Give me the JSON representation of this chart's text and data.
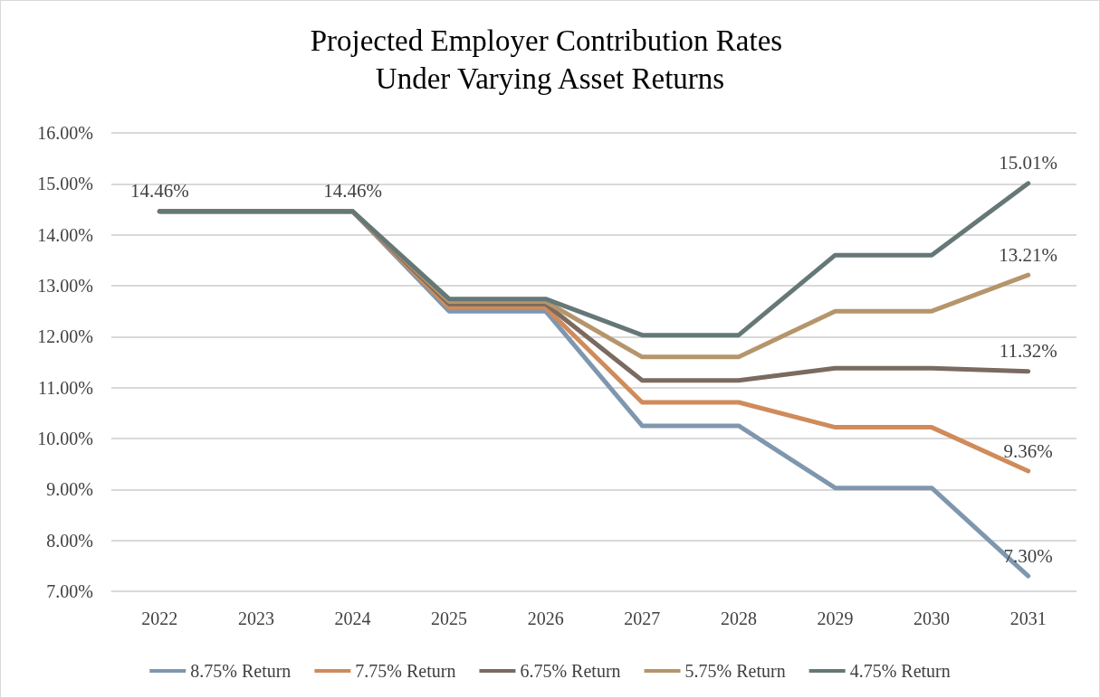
{
  "chart_data": {
    "type": "line",
    "title": "Projected Employer Contribution Rates Under Varying Asset Returns",
    "categories": [
      "2022",
      "2023",
      "2024",
      "2025",
      "2026",
      "2027",
      "2028",
      "2029",
      "2030",
      "2031"
    ],
    "series": [
      {
        "name": "8.75% Return",
        "color": "#7f97ae",
        "values": [
          14.46,
          14.46,
          14.46,
          12.5,
          12.5,
          10.25,
          10.25,
          9.03,
          9.03,
          7.3
        ],
        "value_labels": [
          null,
          null,
          null,
          null,
          null,
          null,
          null,
          null,
          null,
          "7.30%"
        ]
      },
      {
        "name": "7.75% Return",
        "color": "#d08b5b",
        "values": [
          14.46,
          14.46,
          14.46,
          12.57,
          12.57,
          10.71,
          10.71,
          10.22,
          10.22,
          9.36
        ],
        "value_labels": [
          null,
          null,
          null,
          null,
          null,
          null,
          null,
          null,
          null,
          "9.36%"
        ]
      },
      {
        "name": "6.75% Return",
        "color": "#7a6a60",
        "values": [
          14.46,
          14.46,
          14.46,
          12.64,
          12.64,
          11.14,
          11.14,
          11.38,
          11.38,
          11.32
        ],
        "value_labels": [
          null,
          null,
          null,
          null,
          null,
          null,
          null,
          null,
          null,
          "11.32%"
        ]
      },
      {
        "name": "5.75% Return",
        "color": "#b5956b",
        "values": [
          14.46,
          14.46,
          14.46,
          12.69,
          12.69,
          11.6,
          11.6,
          12.5,
          12.5,
          13.21
        ],
        "value_labels": [
          null,
          null,
          null,
          null,
          null,
          null,
          null,
          null,
          null,
          "13.21%"
        ]
      },
      {
        "name": "4.75% Return",
        "color": "#657877",
        "values": [
          14.46,
          14.46,
          14.46,
          12.74,
          12.74,
          12.03,
          12.03,
          13.6,
          13.6,
          15.01
        ],
        "value_labels": [
          "14.46%",
          null,
          "14.46%",
          null,
          null,
          null,
          null,
          null,
          null,
          "15.01%"
        ]
      }
    ],
    "ylim": [
      7,
      16
    ],
    "yticks": [
      {
        "value": 7,
        "label": "7.00%"
      },
      {
        "value": 8,
        "label": "8.00%"
      },
      {
        "value": 9,
        "label": "9.00%"
      },
      {
        "value": 10,
        "label": "10.00%"
      },
      {
        "value": 11,
        "label": "11.00%"
      },
      {
        "value": 12,
        "label": "12.00%"
      },
      {
        "value": 13,
        "label": "13.00%"
      },
      {
        "value": 14,
        "label": "14.00%"
      },
      {
        "value": 15,
        "label": "15.00%"
      },
      {
        "value": 16,
        "label": "16.00%"
      }
    ],
    "grid": "y",
    "legend": "bottom",
    "marker": "none",
    "line_style": "solid"
  }
}
